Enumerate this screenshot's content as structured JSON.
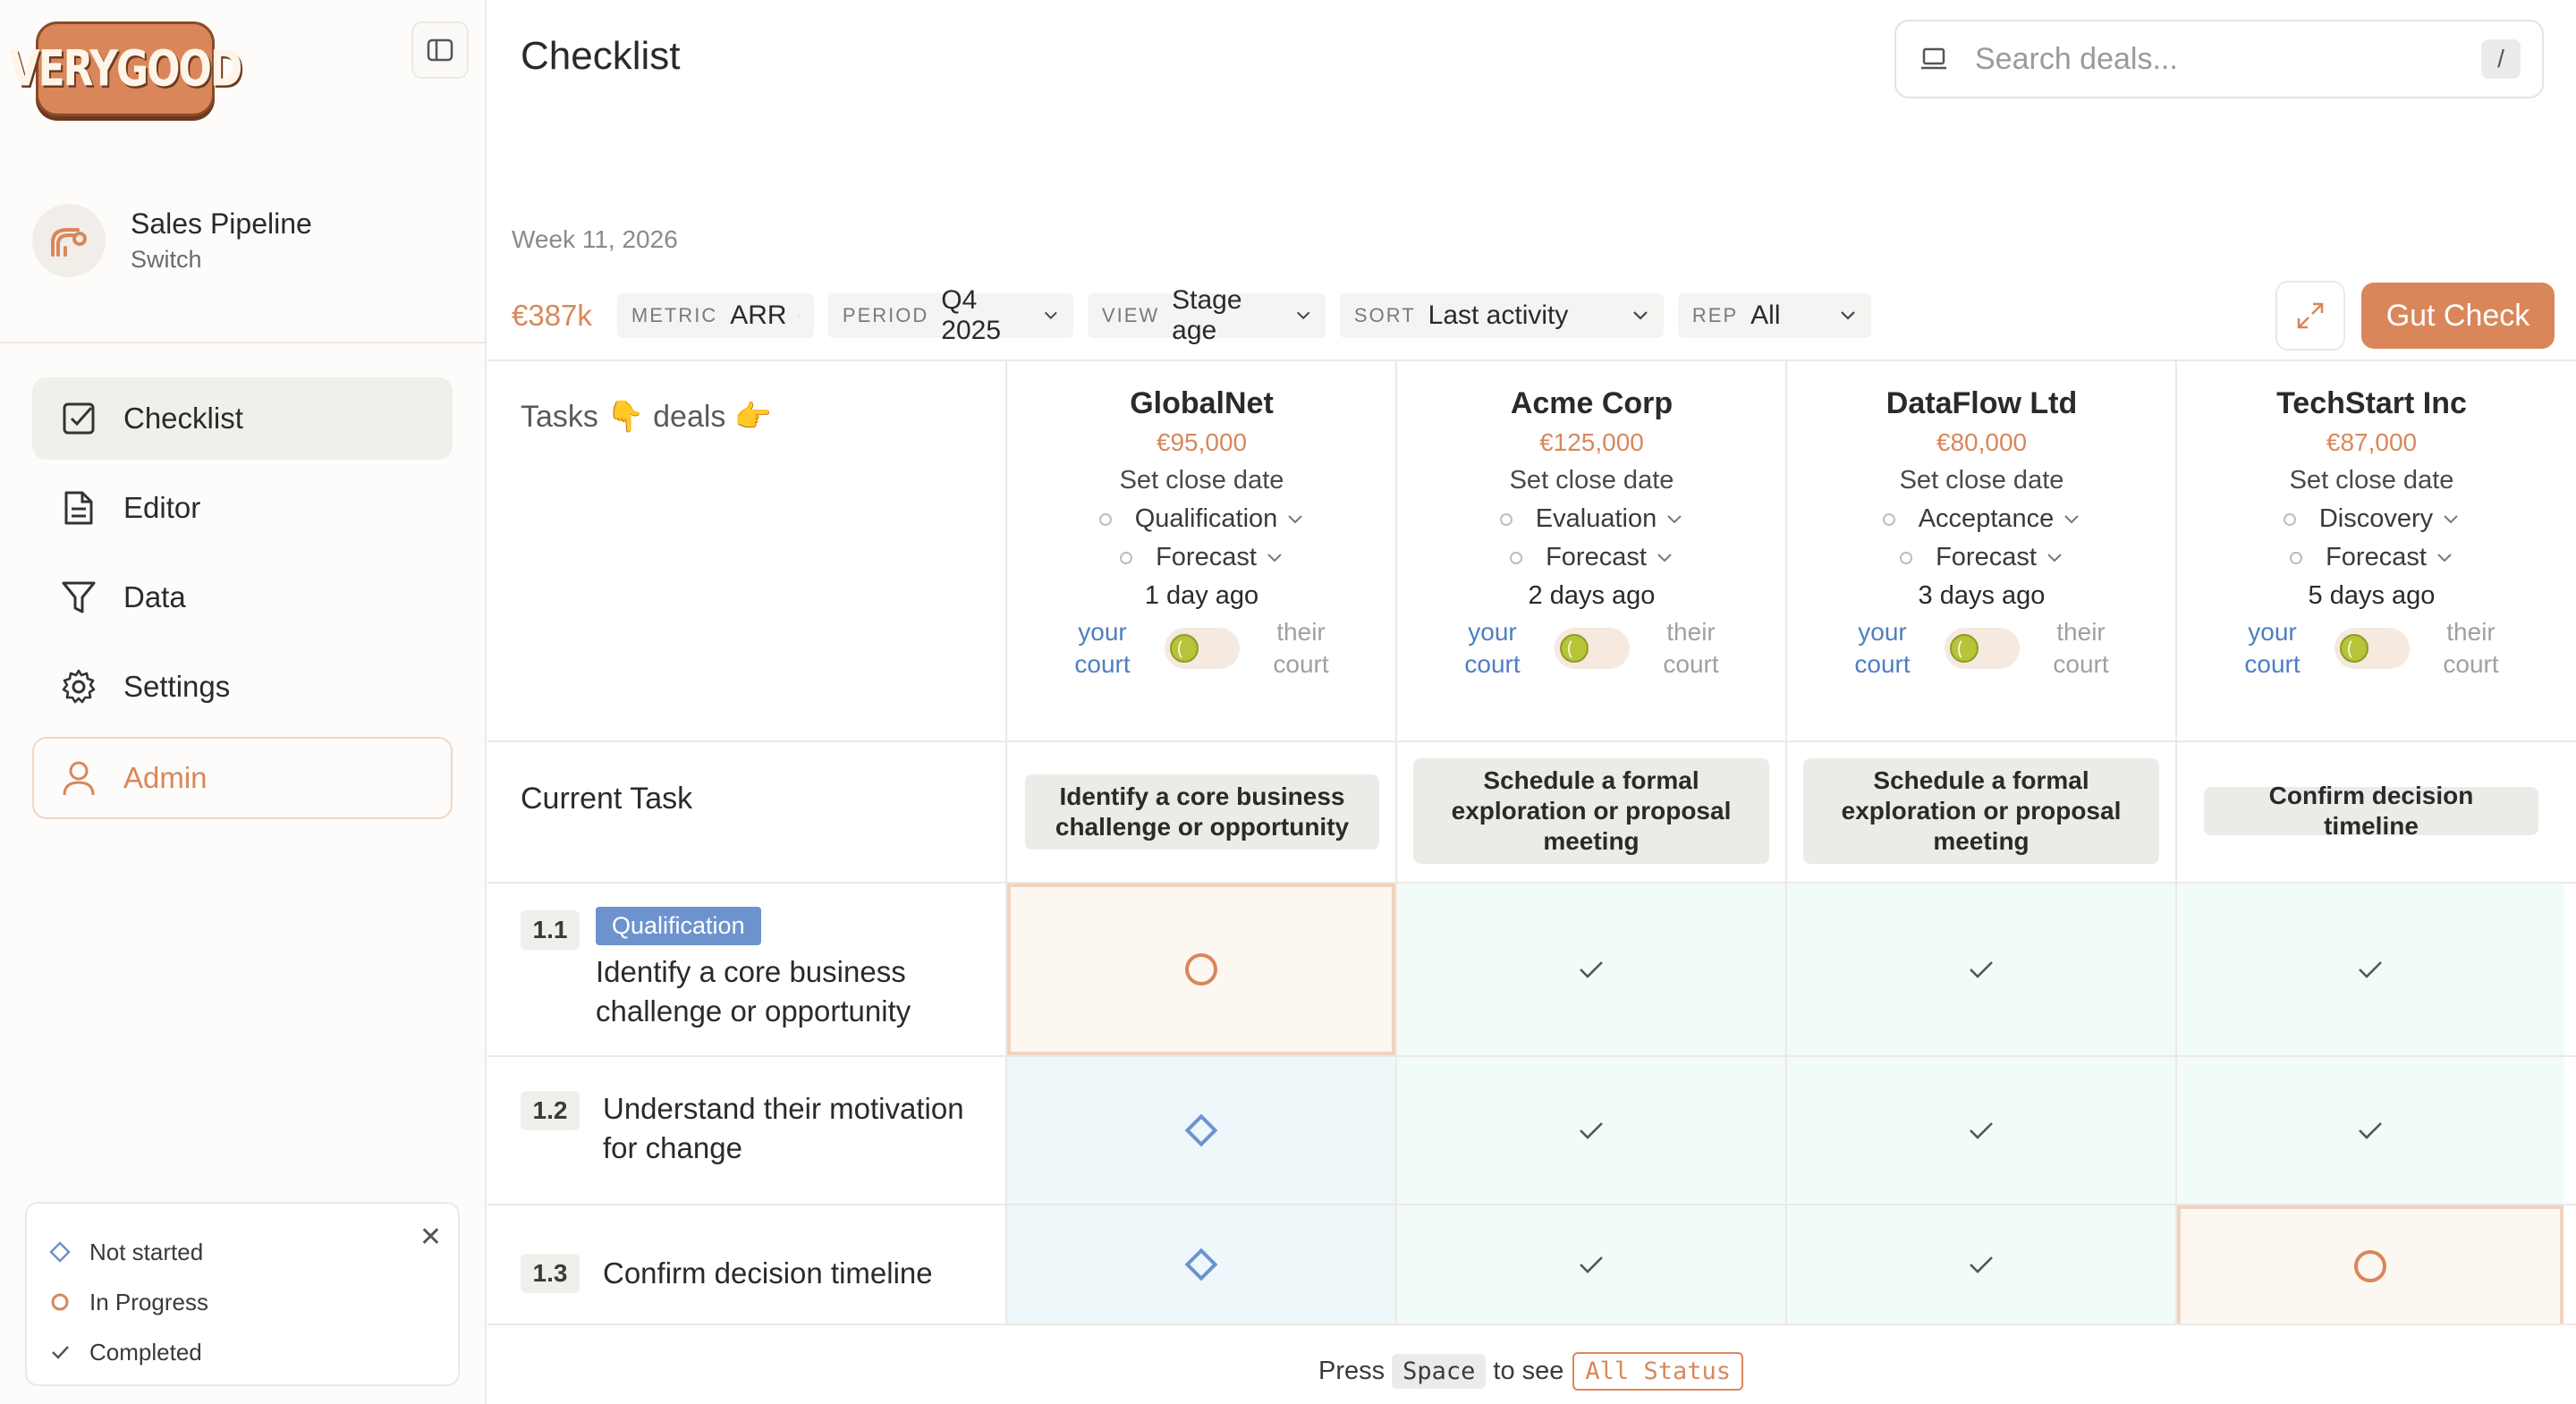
{
  "sidebar": {
    "logo_text": "VERYGOOD",
    "workspace": {
      "name": "Sales Pipeline",
      "switch_label": "Switch"
    },
    "nav": [
      {
        "label": "Checklist",
        "icon": "checkbox-icon",
        "active": true
      },
      {
        "label": "Editor",
        "icon": "document-icon"
      },
      {
        "label": "Data",
        "icon": "filter-icon"
      },
      {
        "label": "Settings",
        "icon": "gear-icon"
      },
      {
        "label": "Admin",
        "icon": "user-icon"
      }
    ],
    "legend": {
      "not_started": "Not started",
      "in_progress": "In Progress",
      "completed": "Completed"
    }
  },
  "header": {
    "title": "Checklist",
    "search_placeholder": "Search deals...",
    "search_shortcut": "/"
  },
  "week_label": "Week 11, 2026",
  "filters": {
    "total": "€387k",
    "items": [
      {
        "label": "METRIC",
        "value": "ARR"
      },
      {
        "label": "PERIOD",
        "value": "Q4 2025"
      },
      {
        "label": "VIEW",
        "value": "Stage age"
      },
      {
        "label": "SORT",
        "value": "Last activity"
      },
      {
        "label": "REP",
        "value": "All"
      }
    ],
    "gut_check": "Gut Check"
  },
  "grid": {
    "corner_label": "Tasks 👇 deals 👉",
    "your_court": "your court",
    "their_court": "their court",
    "current_task_label": "Current Task",
    "deals": [
      {
        "name": "GlobalNet",
        "amount": "€95,000",
        "close": "Set close date",
        "stage": "Qualification",
        "forecast": "Forecast",
        "age": "1 day ago",
        "current_task": "Identify a core business challenge or opportunity"
      },
      {
        "name": "Acme Corp",
        "amount": "€125,000",
        "close": "Set close date",
        "stage": "Evaluation",
        "forecast": "Forecast",
        "age": "2 days ago",
        "current_task": "Schedule a formal exploration or proposal meeting"
      },
      {
        "name": "DataFlow Ltd",
        "amount": "€80,000",
        "close": "Set close date",
        "stage": "Acceptance",
        "forecast": "Forecast",
        "age": "3 days ago",
        "current_task": "Schedule a formal exploration or proposal meeting"
      },
      {
        "name": "TechStart Inc",
        "amount": "€87,000",
        "close": "Set close date",
        "stage": "Discovery",
        "forecast": "Forecast",
        "age": "5 days ago",
        "current_task": "Confirm decision timeline"
      }
    ],
    "tasks": [
      {
        "num": "1.1",
        "stage": "Qualification",
        "title": "Identify a core business challenge or opportunity",
        "statuses": [
          "in_progress",
          "completed",
          "completed",
          "completed"
        ]
      },
      {
        "num": "1.2",
        "title": "Understand their motivation for change",
        "statuses": [
          "not_started",
          "completed",
          "completed",
          "completed"
        ]
      },
      {
        "num": "1.3",
        "title": "Confirm decision timeline",
        "statuses": [
          "not_started",
          "completed",
          "completed",
          "in_progress"
        ]
      }
    ]
  },
  "footer": {
    "press": "Press",
    "key": "Space",
    "to_see": "to see",
    "status": "All Status"
  }
}
